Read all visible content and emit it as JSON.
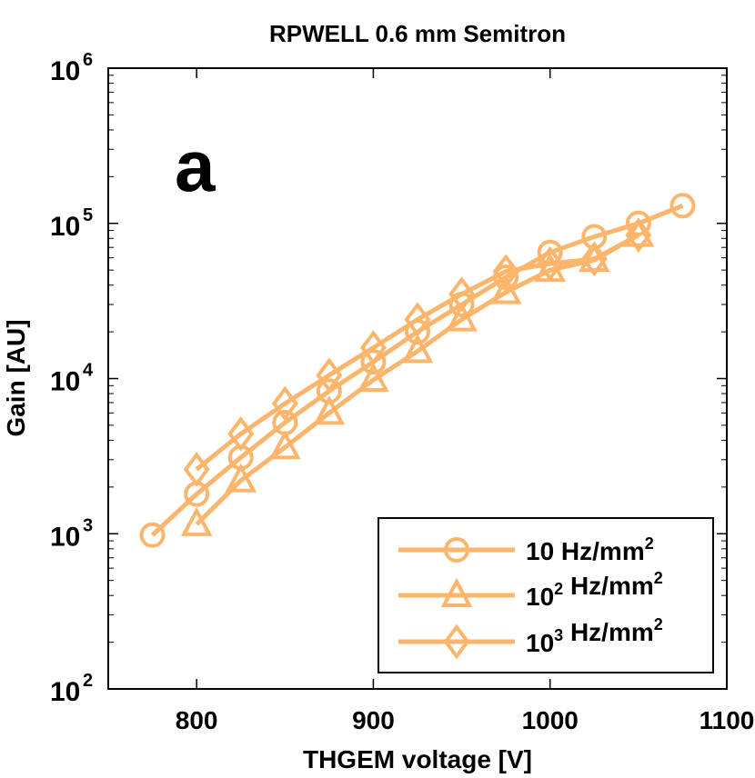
{
  "chart_data": {
    "type": "line",
    "title": "RPWELL 0.6 mm Semitron",
    "panel_label": "a",
    "xlabel": "THGEM voltage [V]",
    "ylabel": "Gain [AU]",
    "xlim": [
      750,
      1100
    ],
    "ylim": [
      100,
      1000000
    ],
    "yscale": "log",
    "xticks": [
      800,
      900,
      1000,
      1100
    ],
    "yticks": [
      {
        "value": 100,
        "base": "10",
        "exp": "2"
      },
      {
        "value": 1000,
        "base": "10",
        "exp": "3"
      },
      {
        "value": 10000,
        "base": "10",
        "exp": "4"
      },
      {
        "value": 100000,
        "base": "10",
        "exp": "5"
      },
      {
        "value": 1000000,
        "base": "10",
        "exp": "6"
      }
    ],
    "line_color": "#FDB56B",
    "legend_position": "bottom-right",
    "series": [
      {
        "name": "10 Hz/mm2",
        "marker": "circle",
        "legend": {
          "base": "10",
          "exp": "",
          "unit": "Hz/mm",
          "unit_exp": "2"
        },
        "x": [
          775,
          800,
          825,
          850,
          875,
          900,
          925,
          950,
          975,
          1000,
          1025,
          1050,
          1075
        ],
        "y": [
          980,
          1800,
          3100,
          5200,
          8300,
          12800,
          20000,
          30000,
          45000,
          65000,
          82000,
          100000,
          130000
        ]
      },
      {
        "name": "10^2 Hz/mm2",
        "marker": "triangle",
        "legend": {
          "base": "10",
          "exp": "2",
          "unit": "Hz/mm",
          "unit_exp": "2"
        },
        "x": [
          800,
          825,
          850,
          875,
          900,
          925,
          950,
          975,
          1000,
          1025,
          1050
        ],
        "y": [
          1150,
          2200,
          3600,
          6000,
          9800,
          15000,
          24000,
          36000,
          50000,
          58000,
          84000
        ]
      },
      {
        "name": "10^3 Hz/mm2",
        "marker": "diamond",
        "legend": {
          "base": "10",
          "exp": "3",
          "unit": "Hz/mm",
          "unit_exp": "2"
        },
        "x": [
          800,
          825,
          850,
          875,
          900,
          925,
          950,
          975,
          1000,
          1025,
          1050
        ],
        "y": [
          2600,
          4400,
          6900,
          10500,
          15800,
          24000,
          35000,
          49000,
          55000,
          59000,
          84000
        ]
      }
    ]
  }
}
